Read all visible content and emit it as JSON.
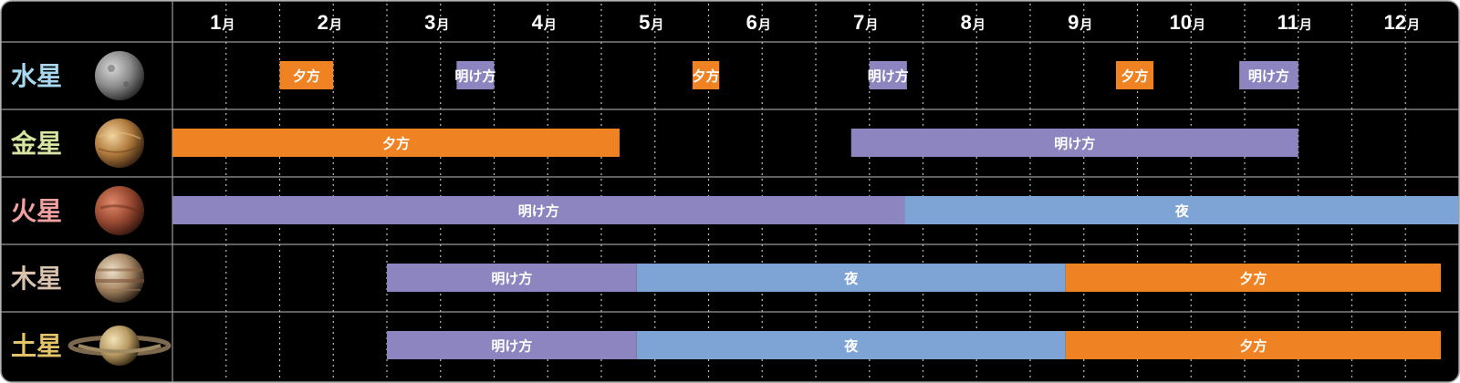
{
  "chart_data": {
    "type": "timeline",
    "months": [
      "1",
      "2",
      "3",
      "4",
      "5",
      "6",
      "7",
      "8",
      "9",
      "10",
      "11",
      "12"
    ],
    "month_suffix": "月",
    "xlim": [
      1,
      13
    ],
    "category_colors": {
      "夕方": "#ef8323",
      "明け方": "#8c85bf",
      "夜": "#7ea3d5"
    },
    "planets": [
      {
        "name": "水星",
        "color": "#a8d8f0",
        "icon": "mercury-icon",
        "bars": [
          {
            "start": 2.0,
            "end": 2.5,
            "label": "夕方"
          },
          {
            "start": 3.65,
            "end": 4.0,
            "label": "明け方"
          },
          {
            "start": 5.85,
            "end": 6.1,
            "label": "夕方"
          },
          {
            "start": 7.5,
            "end": 7.85,
            "label": "明け方"
          },
          {
            "start": 9.8,
            "end": 10.15,
            "label": "夕方"
          },
          {
            "start": 10.95,
            "end": 11.5,
            "label": "明け方"
          }
        ]
      },
      {
        "name": "金星",
        "color": "#d6e6a0",
        "icon": "venus-icon",
        "bars": [
          {
            "start": 1.0,
            "end": 5.17,
            "label": "夕方"
          },
          {
            "start": 7.33,
            "end": 11.5,
            "label": "明け方"
          }
        ]
      },
      {
        "name": "火星",
        "color": "#f0a0a0",
        "icon": "mars-icon",
        "bars": [
          {
            "start": 1.0,
            "end": 7.83,
            "label": "明け方"
          },
          {
            "start": 7.83,
            "end": 13.0,
            "label": "夜"
          }
        ]
      },
      {
        "name": "木星",
        "color": "#d9c3ae",
        "icon": "jupiter-icon",
        "bars": [
          {
            "start": 3.0,
            "end": 5.33,
            "label": "明け方"
          },
          {
            "start": 5.33,
            "end": 9.33,
            "label": "夜"
          },
          {
            "start": 9.33,
            "end": 12.83,
            "label": "夕方"
          }
        ]
      },
      {
        "name": "土星",
        "color": "#e4c46a",
        "icon": "saturn-icon",
        "bars": [
          {
            "start": 3.0,
            "end": 5.33,
            "label": "明け方"
          },
          {
            "start": 5.33,
            "end": 9.33,
            "label": "夜"
          },
          {
            "start": 9.33,
            "end": 12.83,
            "label": "夕方"
          }
        ]
      }
    ]
  }
}
